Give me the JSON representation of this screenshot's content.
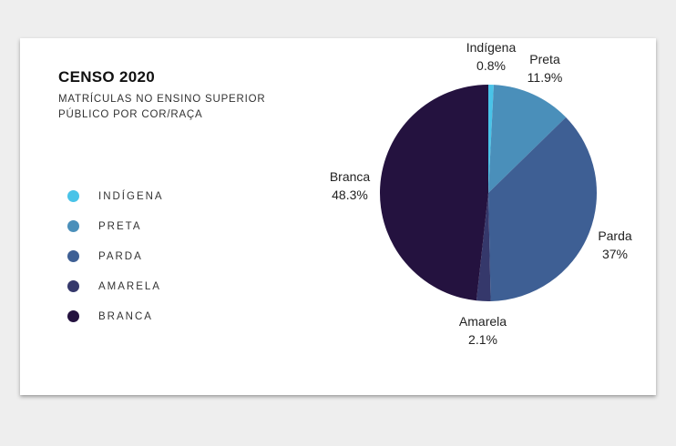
{
  "chart_data": {
    "type": "pie",
    "title": "CENSO 2020",
    "subtitle": "MATRÍCULAS NO ENSINO SUPERIOR\nPÚBLICO POR COR/RAÇA",
    "legend_position": "left",
    "slices": [
      {
        "name": "Indígena",
        "legend": "INDÍGENA",
        "value": 0.8,
        "label": "0.8%",
        "color": "#49c3e8"
      },
      {
        "name": "Preta",
        "legend": "PRETA",
        "value": 11.9,
        "label": "11.9%",
        "color": "#4a8fba"
      },
      {
        "name": "Parda",
        "legend": "PARDA",
        "value": 37,
        "label": "37%",
        "color": "#3e5f94"
      },
      {
        "name": "Amarela",
        "legend": "AMARELA",
        "value": 2.1,
        "label": "2.1%",
        "color": "#35386b"
      },
      {
        "name": "Branca",
        "legend": "BRANCA",
        "value": 48.3,
        "label": "48.3%",
        "color": "#24123f"
      }
    ]
  }
}
